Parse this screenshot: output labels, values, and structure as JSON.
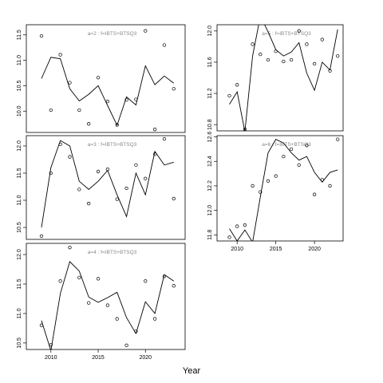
{
  "xlabel": "Year",
  "chart_data": [
    {
      "type": "line",
      "annotation": "a=2  :  f=IBTS+BTSQ3",
      "x": [
        2009,
        2010,
        2011,
        2012,
        2013,
        2014,
        2015,
        2016,
        2017,
        2018,
        2019,
        2020,
        2021,
        2022,
        2023
      ],
      "xlim": [
        2007.4,
        2024.2
      ],
      "ylim": [
        9.58,
        11.7
      ],
      "yticks": [
        {
          "value": 10,
          "label": "10.0"
        },
        10.5,
        {
          "value": 11,
          "label": "11.0"
        },
        11.5
      ],
      "series": [
        {
          "style": "line",
          "color": "#000000",
          "values": [
            10.64,
            11.06,
            11.03,
            10.44,
            10.2,
            10.33,
            10.5,
            10.11,
            9.72,
            10.28,
            10.12,
            10.89,
            10.52,
            10.69,
            10.55
          ]
        },
        {
          "style": "points",
          "color": "#000000",
          "values": [
            11.48,
            10.02,
            11.11,
            10.56,
            10.02,
            9.75,
            10.66,
            10.19,
            9.73,
            10.22,
            10.23,
            11.58,
            9.64,
            11.3,
            10.44
          ]
        }
      ]
    },
    {
      "type": "line",
      "annotation": "a=3  :  f=IBTS+BTSQ3",
      "x": [
        2009,
        2010,
        2011,
        2012,
        2013,
        2014,
        2015,
        2016,
        2017,
        2018,
        2019,
        2020,
        2021,
        2022,
        2023
      ],
      "xlim": [
        2007.4,
        2024.2
      ],
      "ylim": [
        10.28,
        12.19
      ],
      "yticks": [
        10.5,
        {
          "value": 11,
          "label": "11.0"
        },
        11.5,
        {
          "value": 12,
          "label": "12.0"
        }
      ],
      "series": [
        {
          "style": "line",
          "color": "#000000",
          "values": [
            10.5,
            11.6,
            12.1,
            12.0,
            11.35,
            11.2,
            11.35,
            11.55,
            11.1,
            10.7,
            11.5,
            11.1,
            11.9,
            11.65,
            11.7
          ]
        },
        {
          "style": "points",
          "color": "#000000",
          "values": [
            10.34,
            11.5,
            12.03,
            11.8,
            11.2,
            10.94,
            11.53,
            11.57,
            11.02,
            11.22,
            11.65,
            11.4,
            11.85,
            12.13,
            11.03
          ]
        }
      ]
    },
    {
      "type": "line",
      "annotation": "a=4  :  f=IBTS+BTSQ3",
      "x": [
        2009,
        2010,
        2011,
        2012,
        2013,
        2014,
        2015,
        2016,
        2017,
        2018,
        2019,
        2020,
        2021,
        2022,
        2023
      ],
      "xlim": [
        2007.4,
        2024.2
      ],
      "ylim": [
        10.39,
        12.19
      ],
      "xticks": [
        2010,
        2015,
        2020
      ],
      "yticks": [
        10.5,
        {
          "value": 11,
          "label": "11.0"
        },
        11.5,
        {
          "value": 12,
          "label": "12.0"
        }
      ],
      "series": [
        {
          "style": "line",
          "color": "#000000",
          "values": [
            10.88,
            10.37,
            11.34,
            11.88,
            11.72,
            11.28,
            11.19,
            11.27,
            11.36,
            10.93,
            10.66,
            11.2,
            11.0,
            11.66,
            11.55
          ]
        },
        {
          "style": "points",
          "color": "#000000",
          "values": [
            10.8,
            10.47,
            11.55,
            12.12,
            11.61,
            11.18,
            11.59,
            11.14,
            10.91,
            10.46,
            10.7,
            11.55,
            10.91,
            11.63,
            11.47
          ]
        }
      ]
    },
    {
      "type": "line",
      "annotation": "a=5  :  f=IBTS+BTSQ3",
      "x": [
        2009,
        2010,
        2011,
        2012,
        2013,
        2014,
        2015,
        2016,
        2017,
        2018,
        2019,
        2020,
        2021,
        2022,
        2023
      ],
      "xlim": [
        2007.4,
        2023.7
      ],
      "ylim": [
        10.72,
        12.08
      ],
      "yticks": [
        10.8,
        11.2,
        11.6,
        {
          "value": 12,
          "label": "12.0"
        }
      ],
      "series": [
        {
          "style": "line",
          "color": "#000000",
          "values": [
            11.06,
            11.22,
            10.71,
            11.68,
            12.19,
            11.99,
            11.76,
            11.68,
            11.73,
            11.85,
            11.46,
            11.24,
            11.6,
            11.5,
            12.02
          ]
        },
        {
          "style": "points",
          "color": "#000000",
          "values": [
            11.17,
            11.31,
            10.74,
            11.83,
            11.7,
            11.63,
            11.74,
            11.61,
            11.63,
            12.0,
            11.83,
            11.58,
            11.89,
            11.49,
            11.68
          ]
        }
      ]
    },
    {
      "type": "line",
      "annotation": "a=6  :  f=IBTS+BTSQ3",
      "x": [
        2009,
        2010,
        2011,
        2012,
        2013,
        2014,
        2015,
        2016,
        2017,
        2018,
        2019,
        2020,
        2021,
        2022,
        2023
      ],
      "xlim": [
        2007.4,
        2023.7
      ],
      "ylim": [
        11.75,
        12.61
      ],
      "xticks": [
        2010,
        2015,
        2020
      ],
      "yticks": [
        11.8,
        {
          "value": 12,
          "label": "12.0"
        },
        12.2,
        12.4,
        12.6
      ],
      "series": [
        {
          "style": "line",
          "color": "#000000",
          "values": [
            11.85,
            11.75,
            11.84,
            11.74,
            12.11,
            12.47,
            12.58,
            12.55,
            12.47,
            12.41,
            12.44,
            12.31,
            12.23,
            12.31,
            12.33
          ]
        },
        {
          "style": "points",
          "color": "#000000",
          "values": [
            11.78,
            11.87,
            11.88,
            12.2,
            12.15,
            12.24,
            12.28,
            12.44,
            12.5,
            12.37,
            12.53,
            12.13,
            12.25,
            12.2,
            12.58
          ]
        }
      ]
    }
  ]
}
